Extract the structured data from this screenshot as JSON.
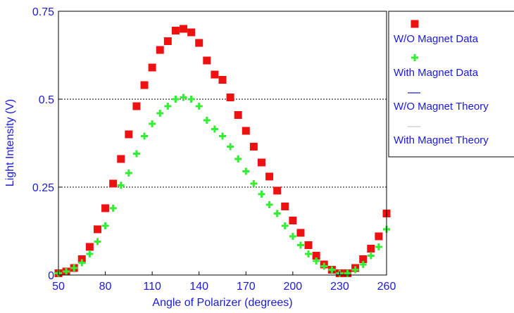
{
  "chart_data": {
    "type": "scatter",
    "xlabel": "Angle of Polarizer (degrees)",
    "ylabel": "Light Intensity (V)",
    "xlim": [
      50,
      260
    ],
    "ylim": [
      0,
      0.75
    ],
    "x_ticks": [
      50,
      80,
      110,
      140,
      170,
      200,
      230,
      260
    ],
    "x_tick_labels": [
      "50",
      "80",
      "110",
      "140",
      "170",
      "200",
      "230",
      "260"
    ],
    "y_ticks": [
      0,
      0.25,
      0.5,
      0.75
    ],
    "y_tick_labels": [
      "0",
      "0.25",
      "0.5",
      "0.75"
    ],
    "gridlines_y": [
      0.25,
      0.5
    ],
    "grid_style": "dotted horizontal",
    "legend_position": "right",
    "series": [
      {
        "name": "W/O Magnet Data",
        "marker": "square",
        "color": "#ee1111",
        "x": [
          50,
          55,
          60,
          65,
          70,
          75,
          80,
          85,
          90,
          95,
          100,
          105,
          110,
          115,
          120,
          125,
          130,
          135,
          140,
          145,
          150,
          155,
          160,
          165,
          170,
          175,
          180,
          185,
          190,
          195,
          200,
          205,
          210,
          215,
          220,
          225,
          230,
          235,
          240,
          245,
          250,
          255,
          260
        ],
        "y": [
          0.005,
          0.01,
          0.02,
          0.045,
          0.08,
          0.13,
          0.19,
          0.26,
          0.33,
          0.4,
          0.48,
          0.54,
          0.59,
          0.64,
          0.665,
          0.695,
          0.7,
          0.69,
          0.66,
          0.61,
          0.57,
          0.555,
          0.505,
          0.455,
          0.41,
          0.365,
          0.32,
          0.28,
          0.24,
          0.195,
          0.155,
          0.12,
          0.085,
          0.055,
          0.03,
          0.015,
          0.005,
          0.005,
          0.02,
          0.045,
          0.075,
          0.11,
          0.175
        ]
      },
      {
        "name": "With Magnet Data",
        "marker": "plus",
        "color": "#33ee33",
        "x": [
          50,
          55,
          60,
          65,
          70,
          75,
          80,
          85,
          90,
          95,
          100,
          105,
          110,
          115,
          120,
          125,
          130,
          135,
          140,
          145,
          150,
          155,
          160,
          165,
          170,
          175,
          180,
          185,
          190,
          195,
          200,
          205,
          210,
          215,
          220,
          225,
          230,
          235,
          240,
          245,
          250,
          255,
          260
        ],
        "y": [
          0.005,
          0.01,
          0.02,
          0.035,
          0.06,
          0.095,
          0.14,
          0.19,
          0.255,
          0.29,
          0.345,
          0.395,
          0.43,
          0.46,
          0.48,
          0.5,
          0.505,
          0.5,
          0.48,
          0.44,
          0.415,
          0.395,
          0.365,
          0.33,
          0.295,
          0.26,
          0.23,
          0.2,
          0.175,
          0.14,
          0.11,
          0.085,
          0.06,
          0.04,
          0.025,
          0.015,
          0.005,
          0.005,
          0.015,
          0.03,
          0.055,
          0.08,
          0.13
        ]
      },
      {
        "name": "W/O Magnet Theory",
        "marker": "line",
        "color": "#1a1adc"
      },
      {
        "name": "With Magnet Theory",
        "marker": "line",
        "color": "#c8c8c8"
      }
    ]
  }
}
